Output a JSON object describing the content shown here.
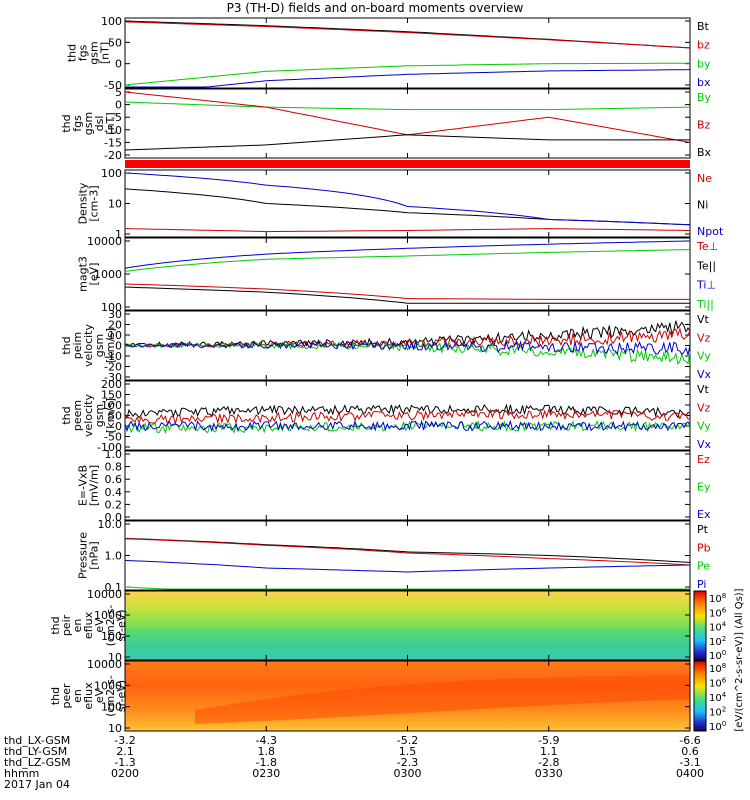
{
  "title": "P3 (TH-D) fields and on-board moments overview",
  "panels": [
    {
      "id": "fgs-gsm",
      "ylabel": [
        "thd",
        "fgs",
        "gsm",
        "[nT]"
      ],
      "scale": "linear",
      "yticks": [
        "100",
        "50",
        "0",
        "-50"
      ],
      "legend": [
        {
          "label": "Bt",
          "color": "#000000"
        },
        {
          "label": "bz",
          "color": "#cc0000"
        },
        {
          "label": "by",
          "color": "#00cc00"
        },
        {
          "label": "bx",
          "color": "#0000cc"
        }
      ]
    },
    {
      "id": "fgs-dsl",
      "ylabel": [
        "thd",
        "fgs",
        "gsm",
        "dsl",
        "[nT]"
      ],
      "scale": "linear",
      "yticks": [
        "5",
        "0",
        "-5",
        "-10",
        "-15",
        "-20"
      ],
      "legend": [
        {
          "label": "By",
          "color": "#00cc00"
        },
        {
          "label": "Bz",
          "color": "#cc0000"
        },
        {
          "label": "Bx",
          "color": "#000000"
        }
      ]
    },
    {
      "id": "density",
      "ylabel": [
        "Density",
        "[cm-3]"
      ],
      "scale": "log",
      "yticks": [
        "100",
        "10",
        "1"
      ],
      "legend": [
        {
          "label": "Ne",
          "color": "#cc0000"
        },
        {
          "label": "Ni",
          "color": "#000000"
        },
        {
          "label": "Npot",
          "color": "#0000cc"
        }
      ]
    },
    {
      "id": "temperature",
      "ylabel": [
        "magt3",
        "[eV]"
      ],
      "scale": "log",
      "yticks": [
        "10000",
        "1000",
        "100"
      ],
      "legend": [
        {
          "label": "Te⊥",
          "color": "#cc0000"
        },
        {
          "label": "Te||",
          "color": "#000000"
        },
        {
          "label": "Ti⊥",
          "color": "#0000cc"
        },
        {
          "label": "Ti||",
          "color": "#00cc00"
        }
      ]
    },
    {
      "id": "ion-velocity",
      "ylabel": [
        "thd",
        "peim",
        "velocity",
        "gsm",
        "[km/s]"
      ],
      "scale": "linear",
      "yticks": [
        "30",
        "20",
        "10",
        "0",
        "-10",
        "-20",
        "-30"
      ],
      "legend": [
        {
          "label": "Vt",
          "color": "#000000"
        },
        {
          "label": "Vz",
          "color": "#cc0000"
        },
        {
          "label": "Vy",
          "color": "#00cc00"
        },
        {
          "label": "Vx",
          "color": "#0000cc"
        }
      ]
    },
    {
      "id": "electron-velocity",
      "ylabel": [
        "thd",
        "peem",
        "velocity",
        "gsm",
        "[km/s]"
      ],
      "scale": "linear",
      "yticks": [
        "200",
        "150",
        "100",
        "50",
        "0",
        "-50",
        "-100"
      ],
      "legend": [
        {
          "label": "Vt",
          "color": "#000000"
        },
        {
          "label": "Vz",
          "color": "#cc0000"
        },
        {
          "label": "Vy",
          "color": "#00cc00"
        },
        {
          "label": "Vx",
          "color": "#0000cc"
        }
      ]
    },
    {
      "id": "efield",
      "ylabel": [
        "E=-VxB",
        "[mV/m]"
      ],
      "scale": "linear",
      "yticks": [
        "1.0",
        "0.8",
        "0.6",
        "0.4",
        "0.2",
        "0.0"
      ],
      "legend": [
        {
          "label": "Ez",
          "color": "#cc0000"
        },
        {
          "label": "Ey",
          "color": "#00cc00"
        },
        {
          "label": "Ex",
          "color": "#0000cc"
        }
      ]
    },
    {
      "id": "pressure",
      "ylabel": [
        "Pressure",
        "[nPa]"
      ],
      "scale": "log",
      "yticks": [
        "10.0",
        "1.0",
        "0.1"
      ],
      "legend": [
        {
          "label": "Pt",
          "color": "#000000"
        },
        {
          "label": "Pb",
          "color": "#cc0000"
        },
        {
          "label": "Pe",
          "color": "#00cc00"
        },
        {
          "label": "Pi",
          "color": "#0000cc"
        }
      ]
    },
    {
      "id": "ion-spectrogram",
      "ylabel": [
        "thd",
        "peir",
        "en",
        "eflux",
        "eV",
        "(cm2-s-",
        "sr-eV)"
      ],
      "scale": "log",
      "yticks": [
        "10000",
        "1000",
        "100",
        "10"
      ]
    },
    {
      "id": "electron-spectrogram",
      "ylabel": [
        "thd",
        "peer",
        "en",
        "eflux",
        "eV",
        "(cm2-s-",
        "sr-eV)"
      ],
      "scale": "log",
      "yticks": [
        "10000",
        "1000",
        "100",
        "10"
      ]
    }
  ],
  "colorbar": {
    "ticks_upper": [
      "10^8",
      "10^6",
      "10^4",
      "10^2",
      "10^0"
    ],
    "ticks_lower": [
      "10^8",
      "10^6",
      "10^4",
      "10^2",
      "10^0"
    ],
    "label": "[eV/(cm^2-s-sr-eV)] (All Qs)]"
  },
  "bottom_axis": {
    "rows": [
      {
        "label": "thd_LX-GSM",
        "values": [
          "-3.2",
          "-4.3",
          "-5.2",
          "-5.9",
          "-6.6"
        ]
      },
      {
        "label": "thd_LY-GSM",
        "values": [
          "2.1",
          "1.8",
          "1.5",
          "1.1",
          "0.6"
        ]
      },
      {
        "label": "thd_LZ-GSM",
        "values": [
          "-1.3",
          "-1.8",
          "-2.3",
          "-2.8",
          "-3.1"
        ]
      },
      {
        "label": "hhmm",
        "values": [
          "0200",
          "0230",
          "0300",
          "0330",
          "0400"
        ]
      }
    ],
    "date": "2017 Jan 04"
  },
  "chart_data": {
    "type": "line",
    "x": [
      "02:00",
      "02:30",
      "03:00",
      "03:30",
      "04:00"
    ],
    "series": [
      {
        "panel": "fgs-gsm",
        "name": "Bt",
        "color": "#000000",
        "values": [
          100,
          89,
          75,
          57,
          37
        ]
      },
      {
        "panel": "fgs-gsm",
        "name": "bz",
        "color": "#cc0000",
        "values": [
          98,
          87,
          73,
          56,
          37
        ]
      },
      {
        "panel": "fgs-gsm",
        "name": "by",
        "color": "#00cc00",
        "values": [
          -50,
          -18,
          -5,
          0,
          1
        ]
      },
      {
        "panel": "fgs-gsm",
        "name": "bx",
        "color": "#0000cc",
        "values": [
          -75,
          -40,
          -25,
          -17,
          -14
        ]
      },
      {
        "panel": "fgs-dsl",
        "name": "By",
        "color": "#00cc00",
        "values": [
          1,
          -1,
          -2,
          -2,
          -1
        ]
      },
      {
        "panel": "fgs-dsl",
        "name": "Bz",
        "color": "#cc0000",
        "values": [
          5,
          -1,
          -12,
          -5,
          -15
        ]
      },
      {
        "panel": "fgs-dsl",
        "name": "Bx",
        "color": "#000000",
        "values": [
          -18,
          -16,
          -12,
          -14,
          -14
        ]
      },
      {
        "panel": "density",
        "name": "Ne",
        "color": "#cc0000",
        "values": [
          1.5,
          1.2,
          1.3,
          1.5,
          1.3
        ]
      },
      {
        "panel": "density",
        "name": "Ni",
        "color": "#000000",
        "values": [
          30,
          10,
          5,
          3,
          2
        ]
      },
      {
        "panel": "density",
        "name": "Npot",
        "color": "#0000cc",
        "values": [
          100,
          40,
          8,
          3,
          2
        ]
      },
      {
        "panel": "temperature",
        "name": "Te⊥",
        "color": "#cc0000",
        "values": [
          500,
          350,
          180,
          170,
          170
        ]
      },
      {
        "panel": "temperature",
        "name": "Te||",
        "color": "#000000",
        "values": [
          400,
          280,
          130,
          130,
          130
        ]
      },
      {
        "panel": "temperature",
        "name": "Ti⊥",
        "color": "#0000cc",
        "values": [
          1500,
          4000,
          6000,
          8000,
          10000
        ]
      },
      {
        "panel": "temperature",
        "name": "Ti||",
        "color": "#00cc00",
        "values": [
          1200,
          2800,
          3500,
          4500,
          5500
        ]
      },
      {
        "panel": "ion-velocity",
        "name": "Vt",
        "color": "#000000",
        "values": [
          1,
          2,
          3,
          10,
          18
        ]
      },
      {
        "panel": "ion-velocity",
        "name": "Vz",
        "color": "#cc0000",
        "values": [
          0,
          1,
          2,
          5,
          10
        ]
      },
      {
        "panel": "ion-velocity",
        "name": "Vy",
        "color": "#00cc00",
        "values": [
          0,
          0,
          -1,
          -6,
          -12
        ]
      },
      {
        "panel": "ion-velocity",
        "name": "Vx",
        "color": "#0000cc",
        "values": [
          0,
          0,
          0,
          -2,
          -3
        ]
      },
      {
        "panel": "electron-velocity",
        "name": "Vt",
        "color": "#000000",
        "values": [
          60,
          75,
          80,
          80,
          60
        ]
      },
      {
        "panel": "electron-velocity",
        "name": "Vz",
        "color": "#cc0000",
        "values": [
          30,
          40,
          50,
          60,
          45
        ]
      },
      {
        "panel": "electron-velocity",
        "name": "Vy",
        "color": "#00cc00",
        "values": [
          -10,
          -10,
          0,
          0,
          0
        ]
      },
      {
        "panel": "electron-velocity",
        "name": "Vx",
        "color": "#0000cc",
        "values": [
          0,
          0,
          0,
          0,
          0
        ]
      },
      {
        "panel": "pressure",
        "name": "Pt",
        "color": "#000000",
        "values": [
          3.5,
          2.2,
          1.3,
          1.0,
          0.6
        ]
      },
      {
        "panel": "pressure",
        "name": "Pb",
        "color": "#cc0000",
        "values": [
          3.4,
          2.1,
          1.2,
          0.8,
          0.5
        ]
      },
      {
        "panel": "pressure",
        "name": "Pe",
        "color": "#00cc00",
        "values": [
          0.1,
          0.05,
          0.04,
          0.05,
          0.05
        ]
      },
      {
        "panel": "pressure",
        "name": "Pi",
        "color": "#0000cc",
        "values": [
          0.7,
          0.4,
          0.3,
          0.4,
          0.5
        ]
      }
    ]
  }
}
